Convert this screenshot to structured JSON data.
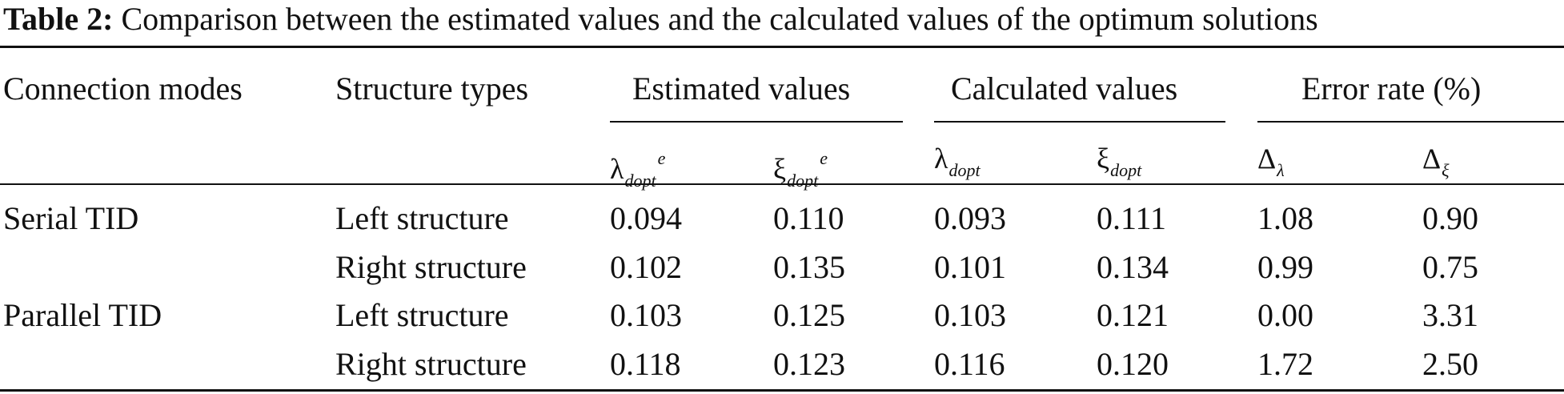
{
  "caption": {
    "label": "Table 2:",
    "text": " Comparison between the estimated values and the calculated values of the optimum solutions"
  },
  "header": {
    "connection_modes": "Connection modes",
    "structure_types": "Structure types",
    "estimated_values": "Estimated values",
    "calculated_values": "Calculated values",
    "error_rate": "Error rate (%)"
  },
  "subheader": {
    "est_lambda": {
      "symbol": "λ",
      "sub": "dopt",
      "sup": "e"
    },
    "est_xi": {
      "symbol": "ξ",
      "sub": "dopt",
      "sup": "e"
    },
    "calc_lambda": {
      "symbol": "λ",
      "sub": "dopt"
    },
    "calc_xi": {
      "symbol": "ξ",
      "sub": "dopt"
    },
    "err_lambda": {
      "symbol": "Δ",
      "sub": "λ"
    },
    "err_xi": {
      "symbol": "Δ",
      "sub": "ξ"
    }
  },
  "rows": [
    {
      "mode": "Serial TID",
      "structure": "Left structure",
      "est_lambda": "0.094",
      "est_xi": "0.110",
      "calc_lambda": "0.093",
      "calc_xi": "0.111",
      "err_lambda": "1.08",
      "err_xi": "0.90"
    },
    {
      "mode": "",
      "structure": "Right structure",
      "est_lambda": "0.102",
      "est_xi": "0.135",
      "calc_lambda": "0.101",
      "calc_xi": "0.134",
      "err_lambda": "0.99",
      "err_xi": "0.75"
    },
    {
      "mode": "Parallel TID",
      "structure": "Left structure",
      "est_lambda": "0.103",
      "est_xi": "0.125",
      "calc_lambda": "0.103",
      "calc_xi": "0.121",
      "err_lambda": "0.00",
      "err_xi": "3.31"
    },
    {
      "mode": "",
      "structure": "Right structure",
      "est_lambda": "0.118",
      "est_xi": "0.123",
      "calc_lambda": "0.116",
      "calc_xi": "0.120",
      "err_lambda": "1.72",
      "err_xi": "2.50"
    }
  ]
}
